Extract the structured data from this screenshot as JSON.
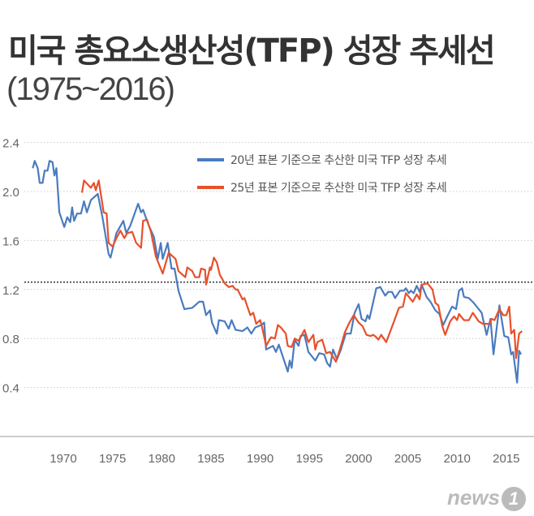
{
  "title": "미국 총요소생산성(TFP) 성장 추세선",
  "subtitle": "(1975~2016)",
  "logo": "news1",
  "chart_data": {
    "type": "line",
    "title": "미국 총요소생산성(TFP) 성장 추세선",
    "subtitle": "(1975~2016)",
    "xlabel": "",
    "ylabel": "",
    "xlim": [
      1964,
      2018
    ],
    "ylim": [
      0,
      2.4
    ],
    "yticks": [
      2.4,
      2.0,
      1.6,
      1.2,
      0.8,
      0.4
    ],
    "ytick_labels": [
      "2.4",
      "2.0",
      "1.6",
      "1.2",
      "0.8",
      "0.4"
    ],
    "xticks": [
      1970,
      1975,
      1980,
      1985,
      1990,
      1995,
      2000,
      2005,
      2010,
      2015
    ],
    "xtick_labels": [
      "1970",
      "1975",
      "1980",
      "1985",
      "1990",
      "1995",
      "2000",
      "2005",
      "2010",
      "2015"
    ],
    "grid": "horizontal dotted",
    "reference_line": 1.26,
    "legend_position": "top-right",
    "series": [
      {
        "name": "20년 표본 기준으로 추산한 미국 TFP 성장 추세",
        "color": "#4a7bbf",
        "points": [
          [
            1966.9,
            2.19
          ],
          [
            1967.1,
            2.25
          ],
          [
            1967.4,
            2.19
          ],
          [
            1967.6,
            2.07
          ],
          [
            1967.9,
            2.07
          ],
          [
            1968.1,
            2.17
          ],
          [
            1968.4,
            2.17
          ],
          [
            1968.6,
            2.25
          ],
          [
            1968.9,
            2.24
          ],
          [
            1969.1,
            2.13
          ],
          [
            1969.3,
            2.19
          ],
          [
            1969.6,
            1.83
          ],
          [
            1970.1,
            1.71
          ],
          [
            1970.4,
            1.79
          ],
          [
            1970.7,
            1.75
          ],
          [
            1970.9,
            1.87
          ],
          [
            1971.1,
            1.76
          ],
          [
            1971.4,
            1.82
          ],
          [
            1971.8,
            1.82
          ],
          [
            1972.1,
            1.92
          ],
          [
            1972.4,
            1.83
          ],
          [
            1972.8,
            1.93
          ],
          [
            1973.5,
            1.98
          ],
          [
            1974.0,
            1.78
          ],
          [
            1974.6,
            1.49
          ],
          [
            1974.8,
            1.46
          ],
          [
            1975.4,
            1.66
          ],
          [
            1976.1,
            1.76
          ],
          [
            1976.4,
            1.66
          ],
          [
            1976.8,
            1.72
          ],
          [
            1977.6,
            1.9
          ],
          [
            1977.9,
            1.83
          ],
          [
            1978.1,
            1.85
          ],
          [
            1978.7,
            1.72
          ],
          [
            1979.2,
            1.63
          ],
          [
            1979.6,
            1.45
          ],
          [
            1979.9,
            1.58
          ],
          [
            1980.1,
            1.45
          ],
          [
            1980.6,
            1.58
          ],
          [
            1981.0,
            1.37
          ],
          [
            1981.3,
            1.37
          ],
          [
            1981.7,
            1.19
          ],
          [
            1982.3,
            1.04
          ],
          [
            1983.1,
            1.05
          ],
          [
            1983.8,
            1.1
          ],
          [
            1984.2,
            1.1
          ],
          [
            1984.5,
            0.99
          ],
          [
            1984.9,
            1.03
          ],
          [
            1985.1,
            0.93
          ],
          [
            1985.6,
            0.84
          ],
          [
            1985.8,
            0.95
          ],
          [
            1986.4,
            0.94
          ],
          [
            1986.8,
            0.88
          ],
          [
            1987.1,
            0.95
          ],
          [
            1987.5,
            0.87
          ],
          [
            1988.2,
            0.86
          ],
          [
            1988.7,
            0.89
          ],
          [
            1989.1,
            0.84
          ],
          [
            1989.5,
            0.89
          ],
          [
            1990.1,
            0.91
          ],
          [
            1990.4,
            0.93
          ],
          [
            1990.6,
            0.71
          ],
          [
            1991.3,
            0.74
          ],
          [
            1991.6,
            0.69
          ],
          [
            1991.9,
            0.75
          ],
          [
            1992.8,
            0.53
          ],
          [
            1993.0,
            0.62
          ],
          [
            1993.2,
            0.56
          ],
          [
            1993.5,
            0.79
          ],
          [
            1993.9,
            0.74
          ],
          [
            1994.1,
            0.82
          ],
          [
            1994.5,
            0.83
          ],
          [
            1994.9,
            0.69
          ],
          [
            1995.6,
            0.62
          ],
          [
            1996.0,
            0.68
          ],
          [
            1996.5,
            0.67
          ],
          [
            1996.8,
            0.6
          ],
          [
            1997.1,
            0.57
          ],
          [
            1997.4,
            0.71
          ],
          [
            1997.8,
            0.63
          ],
          [
            1998.2,
            0.71
          ],
          [
            1998.7,
            0.84
          ],
          [
            1999.2,
            0.84
          ],
          [
            1999.6,
            1.01
          ],
          [
            2000.0,
            1.08
          ],
          [
            2000.3,
            0.96
          ],
          [
            2000.7,
            0.94
          ],
          [
            2000.9,
            0.99
          ],
          [
            2001.1,
            0.96
          ],
          [
            2001.8,
            1.21
          ],
          [
            2002.2,
            1.22
          ],
          [
            2002.7,
            1.15
          ],
          [
            2003.0,
            1.18
          ],
          [
            2003.4,
            1.18
          ],
          [
            2003.7,
            1.13
          ],
          [
            2004.2,
            1.19
          ],
          [
            2004.6,
            1.19
          ],
          [
            2004.8,
            1.21
          ],
          [
            2005.1,
            1.17
          ],
          [
            2005.3,
            1.19
          ],
          [
            2005.6,
            1.17
          ],
          [
            2005.9,
            1.23
          ],
          [
            2006.2,
            1.18
          ],
          [
            2006.4,
            1.24
          ],
          [
            2006.9,
            1.14
          ],
          [
            2007.3,
            1.1
          ],
          [
            2007.8,
            1.03
          ],
          [
            2008.2,
            1.0
          ],
          [
            2008.6,
            0.91
          ],
          [
            2009.0,
            0.98
          ],
          [
            2009.5,
            1.06
          ],
          [
            2009.9,
            1.04
          ],
          [
            2010.2,
            1.19
          ],
          [
            2010.5,
            1.21
          ],
          [
            2010.7,
            1.14
          ],
          [
            2011.2,
            1.13
          ],
          [
            2011.7,
            1.09
          ],
          [
            2011.9,
            1.07
          ],
          [
            2012.5,
            1.01
          ],
          [
            2013.0,
            0.83
          ],
          [
            2013.4,
            0.96
          ],
          [
            2013.7,
            0.67
          ],
          [
            2014.3,
            1.07
          ],
          [
            2014.8,
            0.82
          ],
          [
            2015.2,
            0.81
          ],
          [
            2015.5,
            0.67
          ],
          [
            2015.7,
            0.69
          ],
          [
            2016.1,
            0.44
          ],
          [
            2016.3,
            0.7
          ],
          [
            2016.5,
            0.67
          ]
        ]
      },
      {
        "name": "25년 표본 기준으로 추산한 미국 TFP 성장 추세",
        "color": "#e8502a",
        "points": [
          [
            1971.9,
            1.99
          ],
          [
            1972.1,
            2.09
          ],
          [
            1972.8,
            2.03
          ],
          [
            1973.1,
            2.07
          ],
          [
            1973.3,
            2.01
          ],
          [
            1973.6,
            2.09
          ],
          [
            1974.1,
            1.83
          ],
          [
            1974.4,
            1.82
          ],
          [
            1974.6,
            1.58
          ],
          [
            1975.0,
            1.55
          ],
          [
            1975.4,
            1.62
          ],
          [
            1975.8,
            1.68
          ],
          [
            1976.2,
            1.62
          ],
          [
            1976.5,
            1.66
          ],
          [
            1977.0,
            1.67
          ],
          [
            1977.4,
            1.58
          ],
          [
            1977.9,
            1.54
          ],
          [
            1978.1,
            1.76
          ],
          [
            1978.5,
            1.77
          ],
          [
            1978.9,
            1.67
          ],
          [
            1979.4,
            1.47
          ],
          [
            1980.1,
            1.33
          ],
          [
            1980.7,
            1.5
          ],
          [
            1981.4,
            1.45
          ],
          [
            1981.7,
            1.35
          ],
          [
            1982.4,
            1.3
          ],
          [
            1982.6,
            1.38
          ],
          [
            1983.1,
            1.35
          ],
          [
            1983.4,
            1.3
          ],
          [
            1983.8,
            1.3
          ],
          [
            1984.0,
            1.37
          ],
          [
            1984.4,
            1.36
          ],
          [
            1984.5,
            1.24
          ],
          [
            1984.9,
            1.38
          ],
          [
            1985.0,
            1.36
          ],
          [
            1985.3,
            1.46
          ],
          [
            1985.6,
            1.42
          ],
          [
            1985.9,
            1.32
          ],
          [
            1986.4,
            1.25
          ],
          [
            1986.8,
            1.22
          ],
          [
            1987.2,
            1.23
          ],
          [
            1987.5,
            1.2
          ],
          [
            1987.7,
            1.2
          ],
          [
            1988.2,
            1.12
          ],
          [
            1988.4,
            1.13
          ],
          [
            1989.0,
            0.99
          ],
          [
            1989.3,
            1.01
          ],
          [
            1989.6,
            0.92
          ],
          [
            1990.0,
            0.95
          ],
          [
            1990.2,
            0.89
          ],
          [
            1990.6,
            0.74
          ],
          [
            1991.1,
            0.81
          ],
          [
            1991.5,
            0.8
          ],
          [
            1991.8,
            0.91
          ],
          [
            1992.1,
            0.89
          ],
          [
            1992.6,
            0.84
          ],
          [
            1992.8,
            0.74
          ],
          [
            1993.2,
            0.73
          ],
          [
            1993.5,
            0.8
          ],
          [
            1993.9,
            0.78
          ],
          [
            1994.5,
            0.87
          ],
          [
            1994.9,
            0.77
          ],
          [
            1995.4,
            0.83
          ],
          [
            1995.6,
            0.71
          ],
          [
            1995.8,
            0.77
          ],
          [
            1996.3,
            0.79
          ],
          [
            1996.7,
            0.68
          ],
          [
            1997.1,
            0.69
          ],
          [
            1997.7,
            0.61
          ],
          [
            1998.2,
            0.74
          ],
          [
            1998.6,
            0.85
          ],
          [
            1999.0,
            0.92
          ],
          [
            1999.5,
            0.99
          ],
          [
            2000.0,
            0.93
          ],
          [
            2000.4,
            0.9
          ],
          [
            2000.8,
            0.83
          ],
          [
            2001.2,
            0.82
          ],
          [
            2001.5,
            0.83
          ],
          [
            2001.8,
            0.81
          ],
          [
            2002.0,
            0.79
          ],
          [
            2002.3,
            0.83
          ],
          [
            2002.8,
            0.77
          ],
          [
            2003.5,
            0.92
          ],
          [
            2004.1,
            1.05
          ],
          [
            2004.5,
            1.06
          ],
          [
            2004.8,
            1.17
          ],
          [
            2005.2,
            1.13
          ],
          [
            2005.5,
            1.1
          ],
          [
            2005.9,
            1.16
          ],
          [
            2006.2,
            1.12
          ],
          [
            2006.4,
            1.24
          ],
          [
            2007.0,
            1.25
          ],
          [
            2007.5,
            1.2
          ],
          [
            2007.8,
            1.09
          ],
          [
            2008.1,
            1.07
          ],
          [
            2008.5,
            0.9
          ],
          [
            2008.8,
            0.83
          ],
          [
            2009.3,
            0.94
          ],
          [
            2009.7,
            0.98
          ],
          [
            2010.0,
            0.95
          ],
          [
            2010.2,
            1.0
          ],
          [
            2010.7,
            0.95
          ],
          [
            2011.2,
            0.95
          ],
          [
            2011.6,
            1.01
          ],
          [
            2012.2,
            0.94
          ],
          [
            2012.6,
            0.92
          ],
          [
            2013.3,
            0.92
          ],
          [
            2013.5,
            0.96
          ],
          [
            2013.8,
            0.95
          ],
          [
            2014.3,
            1.04
          ],
          [
            2014.7,
            0.99
          ],
          [
            2015.0,
            0.99
          ],
          [
            2015.3,
            1.06
          ],
          [
            2015.5,
            0.84
          ],
          [
            2015.8,
            0.87
          ],
          [
            2016.0,
            0.64
          ],
          [
            2016.3,
            0.84
          ],
          [
            2016.6,
            0.86
          ]
        ]
      }
    ]
  }
}
